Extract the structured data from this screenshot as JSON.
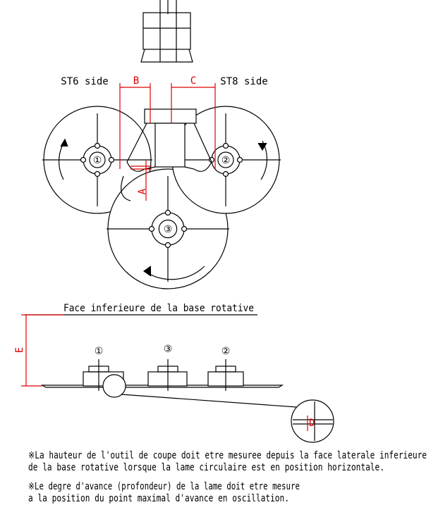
{
  "top": {
    "dim_b": "B",
    "dim_c": "C",
    "st6": "ST6 side",
    "st8": "ST8 side",
    "dim_a": "A",
    "cutter_1": "①",
    "cutter_2": "②",
    "cutter_3": "③"
  },
  "side": {
    "reference": "Face inferieure de la base rotative",
    "dim_e": "E",
    "dim_d": "D",
    "cutter_1": "①",
    "cutter_3": "③",
    "cutter_2": "②"
  },
  "notes": [
    [
      "※La hauteur de l'outil de coupe doit etre mesuree depuis la face laterale inferieure",
      " de la base rotative lorsque la lame circulaire est en position horizontale."
    ],
    [
      "※Le degre d'avance (profondeur) de la lame doit etre mesure",
      " a la position du point maximal d'avance en oscillation."
    ]
  ]
}
